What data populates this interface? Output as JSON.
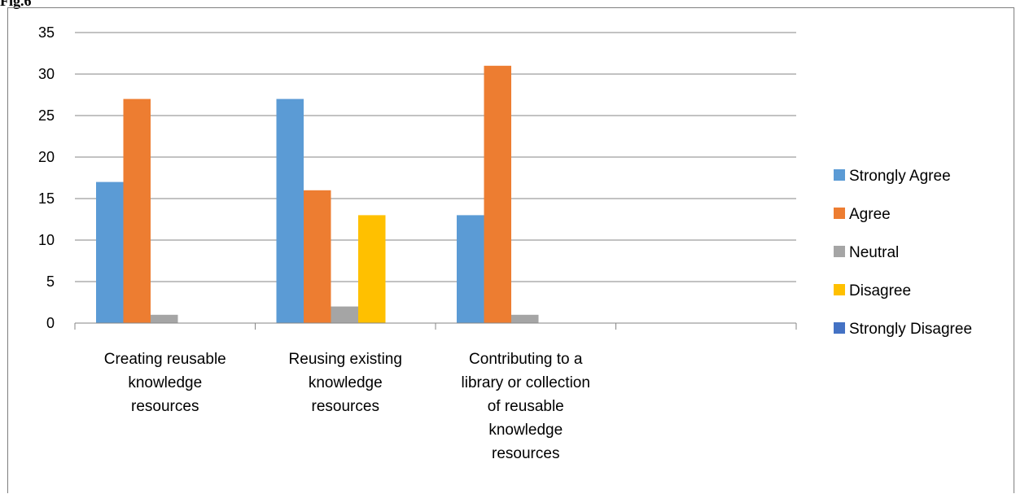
{
  "figure_label": "Fig.6",
  "chart_data": {
    "type": "bar",
    "categories": [
      [
        "Creating reusable",
        "knowledge",
        "resources"
      ],
      [
        "Reusing existing",
        "knowledge",
        "resources"
      ],
      [
        "Contributing to a",
        "library or collection",
        "of reusable",
        "knowledge",
        "resources"
      ],
      [
        ""
      ]
    ],
    "series": [
      {
        "name": "Strongly Agree",
        "color": "#5b9bd5",
        "values": [
          17,
          27,
          13,
          null
        ]
      },
      {
        "name": "Agree",
        "color": "#ed7d31",
        "values": [
          27,
          16,
          31,
          null
        ]
      },
      {
        "name": "Neutral",
        "color": "#a5a5a5",
        "values": [
          1,
          2,
          1,
          null
        ]
      },
      {
        "name": "Disagree",
        "color": "#ffc000",
        "values": [
          0,
          13,
          0,
          null
        ]
      },
      {
        "name": "Strongly Disagree",
        "color": "#4472c4",
        "values": [
          0,
          0,
          0,
          null
        ]
      }
    ],
    "ylim": [
      0,
      35
    ],
    "yticks": [
      0,
      5,
      10,
      15,
      20,
      25,
      30,
      35
    ],
    "grid": true,
    "legend_position": "right"
  }
}
